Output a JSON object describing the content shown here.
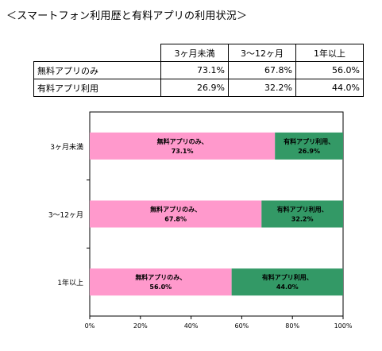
{
  "title": "＜スマートフォン利用歴と有料アプリの利用状況＞",
  "table": {
    "columns": [
      "3ヶ月未満",
      "3〜12ヶ月",
      "1年以上"
    ],
    "rows": [
      {
        "label": "無料アプリのみ",
        "values": [
          "73.1%",
          "67.8%",
          "56.0%"
        ]
      },
      {
        "label": "有料アプリ利用",
        "values": [
          "26.9%",
          "32.2%",
          "44.0%"
        ]
      }
    ]
  },
  "chart_data": {
    "type": "bar",
    "orientation": "horizontal",
    "stacked": true,
    "categories": [
      "3ヶ月未満",
      "3〜12ヶ月",
      "1年以上"
    ],
    "series": [
      {
        "name": "無料アプリのみ",
        "values": [
          73.1,
          67.8,
          56.0
        ],
        "color": "#ff99cc"
      },
      {
        "name": "有料アプリ利用",
        "values": [
          26.9,
          32.2,
          44.0
        ],
        "color": "#339966"
      }
    ],
    "xlim": [
      0,
      100
    ],
    "x_ticks": [
      "0%",
      "20%",
      "40%",
      "60%",
      "80%",
      "100%"
    ],
    "grid": false,
    "data_label_suffix": "%"
  }
}
